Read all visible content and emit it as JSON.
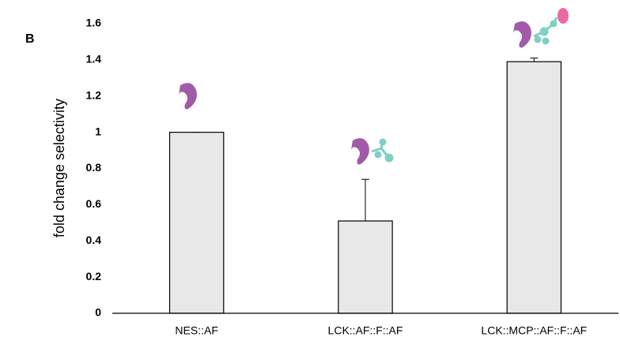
{
  "chart_data": {
    "type": "bar",
    "panel_label": "B",
    "y_label": "fold change selectivity",
    "categories": [
      "NES::AF",
      "LCK::AF::F::AF",
      "LCK::MCP::AF::F::AF"
    ],
    "values": [
      1.0,
      0.51,
      1.39
    ],
    "errors": [
      0,
      0.23,
      0.02
    ],
    "color": "#e8e8e8",
    "ylim": [
      0,
      1.6
    ],
    "yticks": [
      0,
      0.2,
      0.4,
      0.6,
      0.8,
      1,
      1.2,
      1.4,
      1.6
    ]
  }
}
